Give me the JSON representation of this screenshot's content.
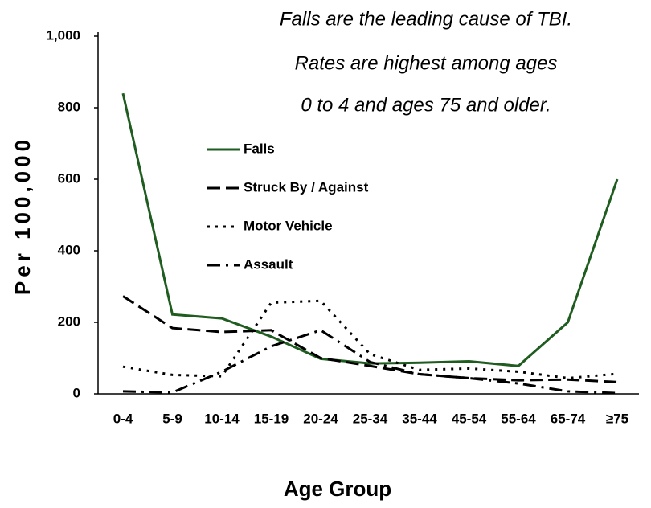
{
  "chart_data": {
    "type": "line",
    "annotation": [
      "Falls are the leading cause of TBI.",
      "Rates are highest among ages",
      "0 to 4 and ages 75 and older."
    ],
    "x_label": "Age Group",
    "y_label": "Per 100,000",
    "categories": [
      "0-4",
      "5-9",
      "10-14",
      "15-19",
      "20-24",
      "25-34",
      "35-44",
      "45-54",
      "55-64",
      "65-74",
      "≥75"
    ],
    "series": [
      {
        "name": "Falls",
        "color": "#1f5c1f",
        "dash": "solid",
        "values": [
          840,
          222,
          211,
          160,
          98,
          85,
          87,
          91,
          78,
          200,
          600
        ]
      },
      {
        "name": "Struck By / Against",
        "color": "#000000",
        "dash": "dashed",
        "values": [
          273,
          184,
          173,
          178,
          100,
          78,
          55,
          44,
          38,
          40,
          33
        ]
      },
      {
        "name": "Motor Vehicle",
        "color": "#000000",
        "dash": "dotted",
        "values": [
          76,
          53,
          49,
          255,
          260,
          111,
          67,
          71,
          62,
          44,
          56
        ]
      },
      {
        "name": "Assault",
        "color": "#000000",
        "dash": "dashdot",
        "values": [
          7,
          4,
          62,
          133,
          178,
          89,
          55,
          44,
          29,
          7,
          2
        ]
      }
    ],
    "ylim": [
      0,
      1000
    ],
    "yticks": [
      0,
      200,
      400,
      600,
      800,
      {
        "value": 1000,
        "label": "1,000"
      }
    ],
    "grid": false
  }
}
